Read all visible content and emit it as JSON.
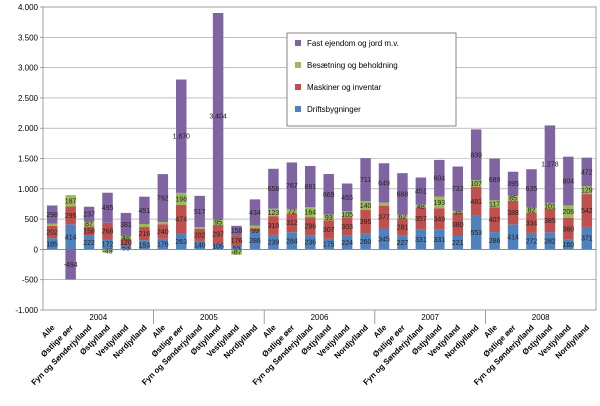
{
  "chart_data": {
    "type": "bar",
    "stacked": true,
    "title": "",
    "xlabel": "",
    "ylabel": "",
    "ylim": [
      -1000,
      4000
    ],
    "yticks": [
      -1000,
      -500,
      0,
      500,
      1000,
      1500,
      2000,
      2500,
      3000,
      3500,
      4000
    ],
    "ytick_labels": [
      "-1.000",
      "-500",
      "0",
      "500",
      "1.000",
      "1.500",
      "2.000",
      "2.500",
      "3.000",
      "3.500",
      "4.000"
    ],
    "grid": true,
    "legend_position": "top-right",
    "groups": [
      "2004",
      "2005",
      "2006",
      "2007",
      "2008"
    ],
    "regions": [
      "Alle",
      "Østlige øer",
      "Fyn og Sønderjylland",
      "Østjylland",
      "Vestjylland",
      "Nordjylland"
    ],
    "series": [
      {
        "name": "Driftsbygninger",
        "color": "#4f81bd",
        "values": [
          [
            185,
            414,
            222,
            172,
            53,
            153
          ],
          [
            176,
            263,
            140,
            105,
            55,
            286
          ],
          [
            239,
            284,
            236,
            175,
            224,
            260
          ],
          [
            345,
            227,
            331,
            331,
            221,
            553
          ],
          [
            286,
            414,
            272,
            282,
            160,
            371
          ]
        ]
      },
      {
        "name": "Maskiner og inventar",
        "color": "#c0504d",
        "values": [
          [
            202,
            295,
            158,
            268,
            120,
            216
          ],
          [
            240,
            474,
            202,
            297,
            176,
            59
          ],
          [
            310,
            312,
            296,
            307,
            303,
            395
          ],
          [
            377,
            281,
            357,
            349,
            380,
            481
          ],
          [
            407,
            388,
            334,
            385,
            360,
            542
          ]
        ]
      },
      {
        "name": "Besætning og beholdning",
        "color": "#9bbb59",
        "values": [
          [
            40,
            187,
            87,
            -49,
            48,
            50
          ],
          [
            34,
            196,
            25,
            95,
            -87,
            46
          ],
          [
            123,
            72,
            164,
            93,
            105,
            140
          ],
          [
            50,
            62,
            48,
            193,
            35,
            107
          ],
          [
            117,
            85,
            82,
            101,
            206,
            129
          ]
        ]
      },
      {
        "name": "Fast ejendom og jord m.v.",
        "color": "#8064a2",
        "values": [
          [
            298,
            -494,
            237,
            495,
            381,
            451
          ],
          [
            792,
            1870,
            517,
            3404,
            158,
            434
          ],
          [
            658,
            767,
            681,
            669,
            455,
            711
          ],
          [
            649,
            688,
            451,
            604,
            732,
            839
          ],
          [
            689,
            395,
            635,
            1278,
            804,
            472
          ]
        ]
      }
    ],
    "labels": [
      [
        [
          "185",
          "202",
          "",
          "298"
        ],
        [
          "414",
          "295",
          "187",
          "-494"
        ],
        [
          "222",
          "158",
          "87",
          "237"
        ],
        [
          "172",
          "268",
          "-49",
          "495"
        ],
        [
          "53",
          "120",
          "48",
          "381"
        ],
        [
          "153",
          "216",
          "",
          "451"
        ]
      ],
      [
        [
          "176",
          "240",
          "",
          "792"
        ],
        [
          "263",
          "474",
          "196",
          "1.870"
        ],
        [
          "140",
          "202",
          "",
          "517"
        ],
        [
          "105",
          "297",
          "95",
          "3.404"
        ],
        [
          "55",
          "176",
          "-87",
          "158"
        ],
        [
          "286",
          "59",
          "",
          "434"
        ]
      ],
      [
        [
          "239",
          "310",
          "123",
          "658"
        ],
        [
          "284",
          "312",
          "72",
          "767"
        ],
        [
          "236",
          "296",
          "164",
          "681"
        ],
        [
          "175",
          "307",
          "93",
          "669"
        ],
        [
          "224",
          "303",
          "105",
          "455"
        ],
        [
          "260",
          "395",
          "140",
          "711"
        ]
      ],
      [
        [
          "345",
          "377",
          "",
          "649"
        ],
        [
          "227",
          "281",
          "62",
          "688"
        ],
        [
          "331",
          "357",
          "48",
          "451"
        ],
        [
          "331",
          "349",
          "193",
          "604"
        ],
        [
          "221",
          "380",
          "35",
          "732"
        ],
        [
          "553",
          "481",
          "107",
          "839"
        ]
      ],
      [
        [
          "286",
          "407",
          "117",
          "689"
        ],
        [
          "414",
          "388",
          "85",
          "395"
        ],
        [
          "272",
          "334",
          "82",
          "635"
        ],
        [
          "282",
          "385",
          "101",
          "1.278"
        ],
        [
          "160",
          "360",
          "206",
          "804"
        ],
        [
          "371",
          "542",
          "129",
          "472"
        ]
      ]
    ]
  }
}
